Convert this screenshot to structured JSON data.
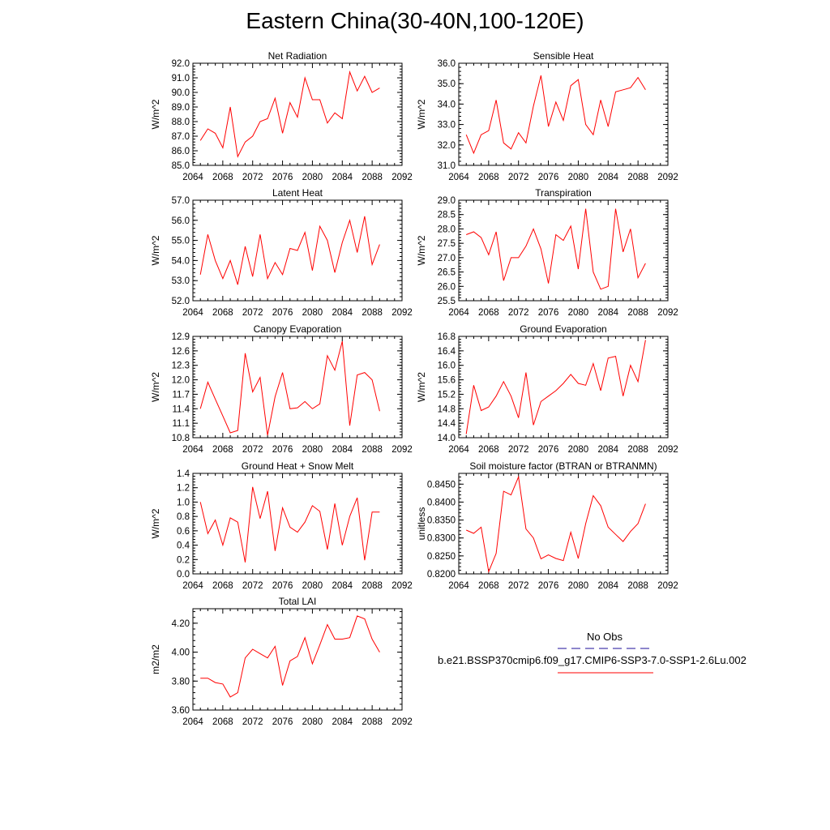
{
  "title": "Eastern China(30-40N,100-120E)",
  "legend": {
    "entries": [
      {
        "label": "No Obs",
        "color": "#4a3fae",
        "style": "dashed"
      },
      {
        "label": "b.e21.BSSP370cmip6.f09_g17.CMIP6-SSP3-7.0-SSP1-2.6Lu.002",
        "color": "#ff0000",
        "style": "solid"
      }
    ]
  },
  "chart_data": [
    {
      "type": "line",
      "title": "Net Radiation",
      "ylabel": "W/m^2",
      "xlim": [
        2064,
        2092
      ],
      "ylim": [
        85.0,
        92.0
      ],
      "xticks": [
        2064,
        2068,
        2072,
        2076,
        2080,
        2084,
        2088,
        2092
      ],
      "yticks": [
        "85.0",
        "86.0",
        "87.0",
        "88.0",
        "89.0",
        "90.0",
        "91.0",
        "92.0"
      ],
      "series": [
        {
          "color": "#ff0000",
          "x": [
            2065,
            2066,
            2067,
            2068,
            2069,
            2070,
            2071,
            2072,
            2073,
            2074,
            2075,
            2076,
            2077,
            2078,
            2079,
            2080,
            2081,
            2082,
            2083,
            2084,
            2085,
            2086,
            2087,
            2088,
            2089
          ],
          "values": [
            86.7,
            87.5,
            87.2,
            86.2,
            89.0,
            85.6,
            86.6,
            87.0,
            88.0,
            88.2,
            89.6,
            87.2,
            89.3,
            88.3,
            91.0,
            89.5,
            89.5,
            87.9,
            88.6,
            88.2,
            91.4,
            90.1,
            91.1,
            90.0,
            90.3
          ]
        }
      ]
    },
    {
      "type": "line",
      "title": "Sensible Heat",
      "ylabel": "W/m^2",
      "xlim": [
        2064,
        2092
      ],
      "ylim": [
        31.0,
        36.0
      ],
      "xticks": [
        2064,
        2068,
        2072,
        2076,
        2080,
        2084,
        2088,
        2092
      ],
      "yticks": [
        "31.0",
        "32.0",
        "33.0",
        "34.0",
        "35.0",
        "36.0"
      ],
      "series": [
        {
          "color": "#ff0000",
          "x": [
            2065,
            2066,
            2067,
            2068,
            2069,
            2070,
            2071,
            2072,
            2073,
            2074,
            2075,
            2076,
            2077,
            2078,
            2079,
            2080,
            2081,
            2082,
            2083,
            2084,
            2085,
            2086,
            2087,
            2088,
            2089
          ],
          "values": [
            32.5,
            31.6,
            32.5,
            32.7,
            34.2,
            32.1,
            31.8,
            32.6,
            32.1,
            33.9,
            35.4,
            32.9,
            34.1,
            33.2,
            34.9,
            35.2,
            33.0,
            32.5,
            34.2,
            32.9,
            34.6,
            34.7,
            34.8,
            35.3,
            34.7
          ]
        }
      ]
    },
    {
      "type": "line",
      "title": "Latent Heat",
      "ylabel": "W/m^2",
      "xlim": [
        2064,
        2092
      ],
      "ylim": [
        52.0,
        57.0
      ],
      "xticks": [
        2064,
        2068,
        2072,
        2076,
        2080,
        2084,
        2088,
        2092
      ],
      "yticks": [
        "52.0",
        "53.0",
        "54.0",
        "55.0",
        "56.0",
        "57.0"
      ],
      "series": [
        {
          "color": "#ff0000",
          "x": [
            2065,
            2066,
            2067,
            2068,
            2069,
            2070,
            2071,
            2072,
            2073,
            2074,
            2075,
            2076,
            2077,
            2078,
            2079,
            2080,
            2081,
            2082,
            2083,
            2084,
            2085,
            2086,
            2087,
            2088,
            2089
          ],
          "values": [
            53.3,
            55.3,
            54.0,
            53.1,
            54.0,
            52.8,
            54.7,
            53.2,
            55.3,
            53.1,
            53.9,
            53.3,
            54.6,
            54.5,
            55.4,
            53.5,
            55.7,
            55.0,
            53.4,
            54.9,
            56.0,
            54.4,
            56.2,
            53.8,
            54.8
          ]
        }
      ]
    },
    {
      "type": "line",
      "title": "Transpiration",
      "ylabel": "W/m^2",
      "xlim": [
        2064,
        2092
      ],
      "ylim": [
        25.5,
        29.0
      ],
      "xticks": [
        2064,
        2068,
        2072,
        2076,
        2080,
        2084,
        2088,
        2092
      ],
      "yticks": [
        "25.5",
        "26.0",
        "26.5",
        "27.0",
        "27.5",
        "28.0",
        "28.5",
        "29.0"
      ],
      "series": [
        {
          "color": "#ff0000",
          "x": [
            2065,
            2066,
            2067,
            2068,
            2069,
            2070,
            2071,
            2072,
            2073,
            2074,
            2075,
            2076,
            2077,
            2078,
            2079,
            2080,
            2081,
            2082,
            2083,
            2084,
            2085,
            2086,
            2087,
            2088,
            2089
          ],
          "values": [
            27.8,
            27.9,
            27.7,
            27.1,
            27.9,
            26.2,
            27.0,
            27.0,
            27.4,
            28.0,
            27.3,
            26.1,
            27.8,
            27.6,
            28.1,
            26.6,
            28.7,
            26.5,
            25.9,
            26.0,
            28.7,
            27.2,
            28.0,
            26.3,
            26.8
          ]
        }
      ]
    },
    {
      "type": "line",
      "title": "Canopy Evaporation",
      "ylabel": "W/m^2",
      "xlim": [
        2064,
        2092
      ],
      "ylim": [
        10.8,
        12.9
      ],
      "xticks": [
        2064,
        2068,
        2072,
        2076,
        2080,
        2084,
        2088,
        2092
      ],
      "yticks": [
        "10.8",
        "11.1",
        "11.4",
        "11.7",
        "12.0",
        "12.3",
        "12.6",
        "12.9"
      ],
      "series": [
        {
          "color": "#ff0000",
          "x": [
            2065,
            2066,
            2067,
            2068,
            2069,
            2070,
            2071,
            2072,
            2073,
            2074,
            2075,
            2076,
            2077,
            2078,
            2079,
            2080,
            2081,
            2082,
            2083,
            2084,
            2085,
            2086,
            2087,
            2088,
            2089
          ],
          "values": [
            11.4,
            11.95,
            11.6,
            11.25,
            10.9,
            10.95,
            12.55,
            11.75,
            12.05,
            10.85,
            11.65,
            12.15,
            11.4,
            11.42,
            11.55,
            11.4,
            11.5,
            12.5,
            12.2,
            12.8,
            11.05,
            12.1,
            12.15,
            12.0,
            11.35
          ]
        }
      ]
    },
    {
      "type": "line",
      "title": "Ground Evaporation",
      "ylabel": "W/m^2",
      "xlim": [
        2064,
        2092
      ],
      "ylim": [
        14.0,
        16.8
      ],
      "xticks": [
        2064,
        2068,
        2072,
        2076,
        2080,
        2084,
        2088,
        2092
      ],
      "yticks": [
        "14.0",
        "14.4",
        "14.8",
        "15.2",
        "15.6",
        "16.0",
        "16.4",
        "16.8"
      ],
      "series": [
        {
          "color": "#ff0000",
          "x": [
            2065,
            2066,
            2067,
            2068,
            2069,
            2070,
            2071,
            2072,
            2073,
            2074,
            2075,
            2076,
            2077,
            2078,
            2079,
            2080,
            2081,
            2082,
            2083,
            2084,
            2085,
            2086,
            2087,
            2088,
            2089
          ],
          "values": [
            14.1,
            15.45,
            14.75,
            14.85,
            15.15,
            15.55,
            15.15,
            14.55,
            15.8,
            14.35,
            15.0,
            15.15,
            15.3,
            15.5,
            15.75,
            15.5,
            15.45,
            16.05,
            15.3,
            16.2,
            16.25,
            15.15,
            16.0,
            15.55,
            16.7
          ]
        }
      ]
    },
    {
      "type": "line",
      "title": "Ground Heat + Snow Melt",
      "ylabel": "W/m^2",
      "xlim": [
        2064,
        2092
      ],
      "ylim": [
        0.0,
        1.4
      ],
      "xticks": [
        2064,
        2068,
        2072,
        2076,
        2080,
        2084,
        2088,
        2092
      ],
      "yticks": [
        "0.0",
        "0.2",
        "0.4",
        "0.6",
        "0.8",
        "1.0",
        "1.2",
        "1.4"
      ],
      "series": [
        {
          "color": "#ff0000",
          "x": [
            2065,
            2066,
            2067,
            2068,
            2069,
            2070,
            2071,
            2072,
            2073,
            2074,
            2075,
            2076,
            2077,
            2078,
            2079,
            2080,
            2081,
            2082,
            2083,
            2084,
            2085,
            2086,
            2087,
            2088,
            2089
          ],
          "values": [
            1.0,
            0.56,
            0.75,
            0.4,
            0.78,
            0.72,
            0.16,
            1.21,
            0.77,
            1.15,
            0.32,
            0.92,
            0.65,
            0.58,
            0.72,
            0.95,
            0.87,
            0.34,
            0.98,
            0.4,
            0.8,
            1.06,
            0.19,
            0.86,
            0.86
          ]
        }
      ]
    },
    {
      "type": "line",
      "title": "Soil moisture factor (BTRAN or BTRANMN)",
      "ylabel": "unitless",
      "xlim": [
        2064,
        2092
      ],
      "ylim": [
        0.82,
        0.848
      ],
      "xticks": [
        2064,
        2068,
        2072,
        2076,
        2080,
        2084,
        2088,
        2092
      ],
      "yticks": [
        "0.8200",
        "0.8250",
        "0.8300",
        "0.8350",
        "0.8400",
        "0.8450"
      ],
      "ytick_values": [
        0.82,
        0.825,
        0.83,
        0.835,
        0.84,
        0.845
      ],
      "series": [
        {
          "color": "#ff0000",
          "x": [
            2065,
            2066,
            2067,
            2068,
            2069,
            2070,
            2071,
            2072,
            2073,
            2074,
            2075,
            2076,
            2077,
            2078,
            2079,
            2080,
            2081,
            2082,
            2083,
            2084,
            2085,
            2086,
            2087,
            2088,
            2089
          ],
          "values": [
            0.8322,
            0.8313,
            0.833,
            0.8206,
            0.8257,
            0.843,
            0.842,
            0.847,
            0.8325,
            0.83,
            0.8242,
            0.8253,
            0.8243,
            0.8237,
            0.8316,
            0.8243,
            0.834,
            0.8418,
            0.839,
            0.833,
            0.831,
            0.829,
            0.8318,
            0.834,
            0.8395
          ]
        }
      ]
    },
    {
      "type": "line",
      "title": "Total LAI",
      "ylabel": "m2/m2",
      "xlim": [
        2064,
        2092
      ],
      "ylim": [
        3.6,
        4.3
      ],
      "xticks": [
        2064,
        2068,
        2072,
        2076,
        2080,
        2084,
        2088,
        2092
      ],
      "yticks": [
        "3.60",
        "3.80",
        "4.00",
        "4.20"
      ],
      "ytick_values": [
        3.6,
        3.8,
        4.0,
        4.2
      ],
      "series": [
        {
          "color": "#ff0000",
          "x": [
            2065,
            2066,
            2067,
            2068,
            2069,
            2070,
            2071,
            2072,
            2073,
            2074,
            2075,
            2076,
            2077,
            2078,
            2079,
            2080,
            2081,
            2082,
            2083,
            2084,
            2085,
            2086,
            2087,
            2088,
            2089
          ],
          "values": [
            3.82,
            3.82,
            3.79,
            3.78,
            3.69,
            3.72,
            3.96,
            4.02,
            3.99,
            3.96,
            4.04,
            3.77,
            3.94,
            3.97,
            4.1,
            3.92,
            4.05,
            4.19,
            4.09,
            4.09,
            4.1,
            4.25,
            4.23,
            4.09,
            4.0
          ]
        }
      ]
    }
  ]
}
